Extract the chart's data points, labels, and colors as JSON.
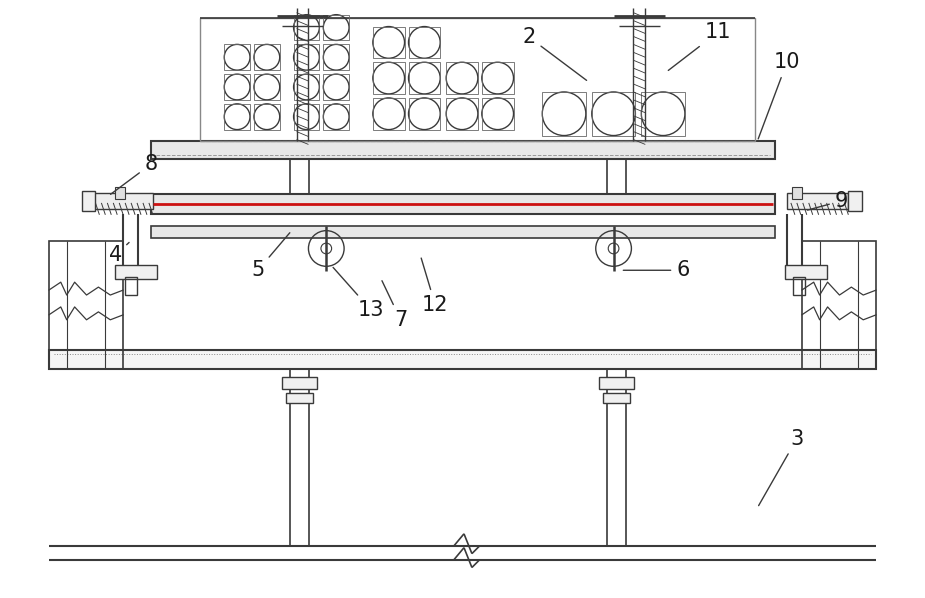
{
  "bg_color": "#ffffff",
  "line_color": "#3a3a3a",
  "lw": 1.0,
  "fig_width": 9.25,
  "fig_height": 5.98
}
